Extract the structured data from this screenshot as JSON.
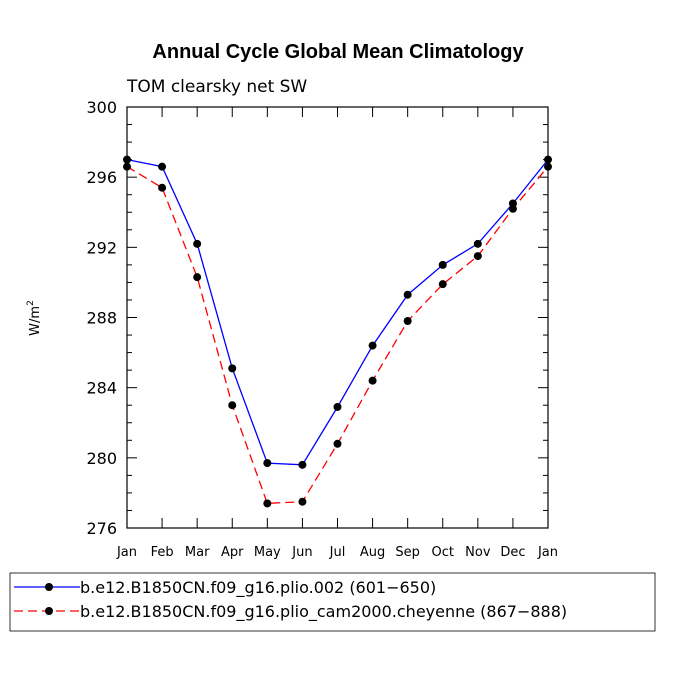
{
  "chart_data": {
    "type": "line",
    "title": "Annual Cycle Global Mean Climatology",
    "subtitle": "TOM clearsky net SW",
    "ylabel_base": "W/m",
    "ylabel_sup": "2",
    "xlabel": "",
    "ylim": [
      276,
      300
    ],
    "yticks": [
      276,
      280,
      284,
      288,
      292,
      296,
      300
    ],
    "categories": [
      "Jan",
      "Feb",
      "Mar",
      "Apr",
      "May",
      "Jun",
      "Jul",
      "Aug",
      "Sep",
      "Oct",
      "Nov",
      "Dec",
      "Jan"
    ],
    "series": [
      {
        "name": "b.e12.B1850CN.f09_g16.plio.002 (601−650)",
        "color": "#0000ff",
        "dash": "solid",
        "values": [
          297.0,
          296.6,
          292.2,
          285.1,
          279.7,
          279.6,
          282.9,
          286.4,
          289.3,
          291.0,
          292.2,
          294.5,
          297.0
        ]
      },
      {
        "name": "b.e12.B1850CN.f09_g16.plio_cam2000.cheyenne (867−888)",
        "color": "#ff0000",
        "dash": "dashed",
        "values": [
          296.6,
          295.4,
          290.3,
          283.0,
          277.4,
          277.5,
          280.8,
          284.4,
          287.8,
          289.9,
          291.5,
          294.2,
          296.6
        ]
      }
    ],
    "legend_position": "bottom"
  }
}
